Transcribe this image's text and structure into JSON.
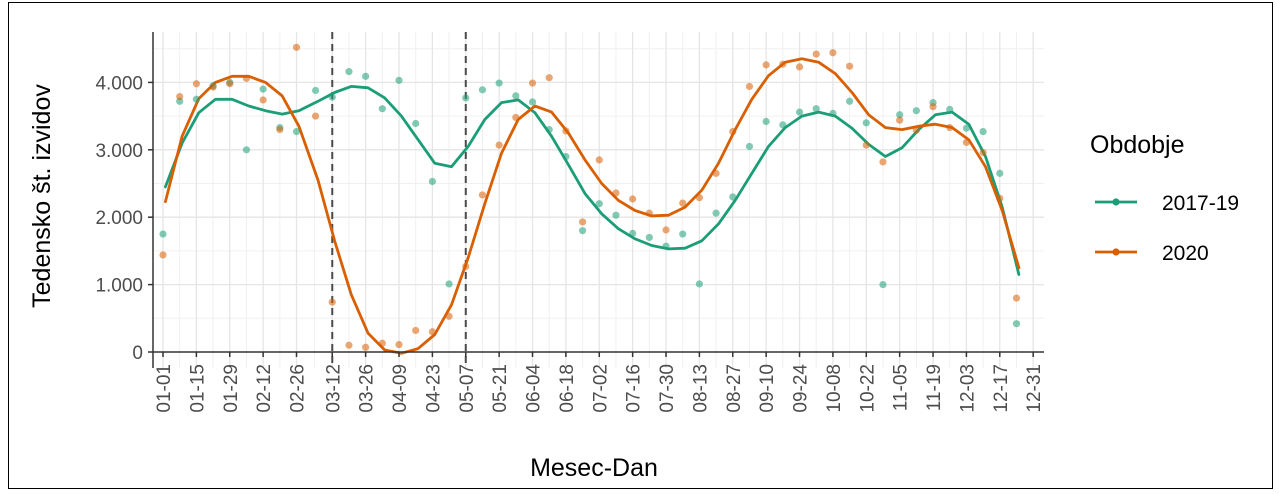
{
  "chart_data": {
    "type": "line",
    "xlabel": "Mesec-Dan",
    "ylabel": "Tedensko št. izvidov",
    "x_ticks": [
      "01-01",
      "01-15",
      "01-29",
      "02-12",
      "02-26",
      "03-12",
      "03-26",
      "04-09",
      "04-23",
      "05-07",
      "05-21",
      "06-04",
      "06-18",
      "07-02",
      "07-16",
      "07-30",
      "08-13",
      "08-27",
      "09-10",
      "09-24",
      "10-08",
      "10-22",
      "11-05",
      "11-19",
      "12-03",
      "12-17",
      "12-31"
    ],
    "y_ticks": [
      0,
      1000,
      2000,
      3000,
      4000
    ],
    "y_tick_labels": [
      "0",
      "1.000",
      "2.000",
      "3.000",
      "4.000"
    ],
    "ylim": [
      -50,
      4750
    ],
    "xlim_days": [
      0,
      365
    ],
    "grid": true,
    "reference_lines": [
      "03-12",
      "05-07"
    ],
    "legend": {
      "title": "Obdobje",
      "position": "right"
    },
    "series": [
      {
        "name": "2017-19",
        "color": "#1b9e77",
        "points": [
          {
            "x": "01-01",
            "y": 1750
          },
          {
            "x": "01-08",
            "y": 3720
          },
          {
            "x": "01-15",
            "y": 3750
          },
          {
            "x": "01-22",
            "y": 3950
          },
          {
            "x": "01-29",
            "y": 4000
          },
          {
            "x": "02-05",
            "y": 3000
          },
          {
            "x": "02-12",
            "y": 3900
          },
          {
            "x": "02-19",
            "y": 3330
          },
          {
            "x": "02-26",
            "y": 3270
          },
          {
            "x": "03-05",
            "y": 3880
          },
          {
            "x": "03-12",
            "y": 3780
          },
          {
            "x": "03-19",
            "y": 4160
          },
          {
            "x": "03-26",
            "y": 4090
          },
          {
            "x": "04-02",
            "y": 3610
          },
          {
            "x": "04-09",
            "y": 4030
          },
          {
            "x": "04-16",
            "y": 3390
          },
          {
            "x": "04-23",
            "y": 2530
          },
          {
            "x": "04-30",
            "y": 1010
          },
          {
            "x": "05-07",
            "y": 3770
          },
          {
            "x": "05-14",
            "y": 3890
          },
          {
            "x": "05-21",
            "y": 3990
          },
          {
            "x": "05-28",
            "y": 3800
          },
          {
            "x": "06-04",
            "y": 3710
          },
          {
            "x": "06-11",
            "y": 3300
          },
          {
            "x": "06-18",
            "y": 2900
          },
          {
            "x": "06-25",
            "y": 1800
          },
          {
            "x": "07-02",
            "y": 2200
          },
          {
            "x": "07-09",
            "y": 2030
          },
          {
            "x": "07-16",
            "y": 1760
          },
          {
            "x": "07-23",
            "y": 1700
          },
          {
            "x": "07-30",
            "y": 1570
          },
          {
            "x": "08-06",
            "y": 1750
          },
          {
            "x": "08-13",
            "y": 1010
          },
          {
            "x": "08-20",
            "y": 2060
          },
          {
            "x": "08-27",
            "y": 2300
          },
          {
            "x": "09-03",
            "y": 3050
          },
          {
            "x": "09-10",
            "y": 3420
          },
          {
            "x": "09-17",
            "y": 3370
          },
          {
            "x": "09-24",
            "y": 3560
          },
          {
            "x": "10-01",
            "y": 3610
          },
          {
            "x": "10-08",
            "y": 3540
          },
          {
            "x": "10-15",
            "y": 3720
          },
          {
            "x": "10-22",
            "y": 3400
          },
          {
            "x": "10-29",
            "y": 1000
          },
          {
            "x": "11-05",
            "y": 3520
          },
          {
            "x": "11-12",
            "y": 3580
          },
          {
            "x": "11-19",
            "y": 3700
          },
          {
            "x": "11-26",
            "y": 3600
          },
          {
            "x": "12-03",
            "y": 3320
          },
          {
            "x": "12-10",
            "y": 3270
          },
          {
            "x": "12-17",
            "y": 2650
          },
          {
            "x": "12-24",
            "y": 420
          }
        ],
        "smooth": [
          {
            "x": "01-02",
            "y": 2450
          },
          {
            "x": "01-09",
            "y": 3100
          },
          {
            "x": "01-16",
            "y": 3550
          },
          {
            "x": "01-23",
            "y": 3750
          },
          {
            "x": "01-30",
            "y": 3750
          },
          {
            "x": "02-06",
            "y": 3650
          },
          {
            "x": "02-13",
            "y": 3580
          },
          {
            "x": "02-20",
            "y": 3530
          },
          {
            "x": "02-27",
            "y": 3580
          },
          {
            "x": "03-06",
            "y": 3720
          },
          {
            "x": "03-13",
            "y": 3850
          },
          {
            "x": "03-20",
            "y": 3940
          },
          {
            "x": "03-27",
            "y": 3920
          },
          {
            "x": "04-03",
            "y": 3770
          },
          {
            "x": "04-10",
            "y": 3500
          },
          {
            "x": "04-17",
            "y": 3150
          },
          {
            "x": "04-24",
            "y": 2800
          },
          {
            "x": "05-01",
            "y": 2750
          },
          {
            "x": "05-08",
            "y": 3050
          },
          {
            "x": "05-15",
            "y": 3450
          },
          {
            "x": "05-22",
            "y": 3700
          },
          {
            "x": "05-29",
            "y": 3740
          },
          {
            "x": "06-05",
            "y": 3550
          },
          {
            "x": "06-12",
            "y": 3200
          },
          {
            "x": "06-19",
            "y": 2780
          },
          {
            "x": "06-26",
            "y": 2350
          },
          {
            "x": "07-03",
            "y": 2050
          },
          {
            "x": "07-10",
            "y": 1830
          },
          {
            "x": "07-17",
            "y": 1680
          },
          {
            "x": "07-24",
            "y": 1580
          },
          {
            "x": "07-31",
            "y": 1530
          },
          {
            "x": "08-07",
            "y": 1540
          },
          {
            "x": "08-14",
            "y": 1650
          },
          {
            "x": "08-21",
            "y": 1900
          },
          {
            "x": "08-28",
            "y": 2250
          },
          {
            "x": "09-04",
            "y": 2650
          },
          {
            "x": "09-11",
            "y": 3050
          },
          {
            "x": "09-18",
            "y": 3330
          },
          {
            "x": "09-25",
            "y": 3500
          },
          {
            "x": "10-02",
            "y": 3560
          },
          {
            "x": "10-09",
            "y": 3500
          },
          {
            "x": "10-16",
            "y": 3320
          },
          {
            "x": "10-23",
            "y": 3080
          },
          {
            "x": "10-30",
            "y": 2900
          },
          {
            "x": "11-06",
            "y": 3030
          },
          {
            "x": "11-13",
            "y": 3300
          },
          {
            "x": "11-20",
            "y": 3520
          },
          {
            "x": "11-27",
            "y": 3560
          },
          {
            "x": "12-04",
            "y": 3380
          },
          {
            "x": "12-11",
            "y": 2900
          },
          {
            "x": "12-18",
            "y": 2150
          },
          {
            "x": "12-25",
            "y": 1150
          }
        ]
      },
      {
        "name": "2020",
        "color": "#d95f02",
        "points": [
          {
            "x": "01-01",
            "y": 1440
          },
          {
            "x": "01-08",
            "y": 3790
          },
          {
            "x": "01-15",
            "y": 3980
          },
          {
            "x": "01-22",
            "y": 3930
          },
          {
            "x": "01-29",
            "y": 3980
          },
          {
            "x": "02-05",
            "y": 4060
          },
          {
            "x": "02-12",
            "y": 3740
          },
          {
            "x": "02-19",
            "y": 3300
          },
          {
            "x": "02-26",
            "y": 4520
          },
          {
            "x": "03-05",
            "y": 3500
          },
          {
            "x": "03-12",
            "y": 740
          },
          {
            "x": "03-19",
            "y": 100
          },
          {
            "x": "03-26",
            "y": 70
          },
          {
            "x": "04-02",
            "y": 130
          },
          {
            "x": "04-09",
            "y": 110
          },
          {
            "x": "04-16",
            "y": 320
          },
          {
            "x": "04-23",
            "y": 300
          },
          {
            "x": "04-30",
            "y": 530
          },
          {
            "x": "05-07",
            "y": 1270
          },
          {
            "x": "05-14",
            "y": 2330
          },
          {
            "x": "05-21",
            "y": 3070
          },
          {
            "x": "05-28",
            "y": 3480
          },
          {
            "x": "06-04",
            "y": 3990
          },
          {
            "x": "06-11",
            "y": 4070
          },
          {
            "x": "06-18",
            "y": 3280
          },
          {
            "x": "06-25",
            "y": 1930
          },
          {
            "x": "07-02",
            "y": 2850
          },
          {
            "x": "07-09",
            "y": 2360
          },
          {
            "x": "07-16",
            "y": 2270
          },
          {
            "x": "07-23",
            "y": 2060
          },
          {
            "x": "07-30",
            "y": 1810
          },
          {
            "x": "08-06",
            "y": 2210
          },
          {
            "x": "08-13",
            "y": 2290
          },
          {
            "x": "08-20",
            "y": 2650
          },
          {
            "x": "08-27",
            "y": 3270
          },
          {
            "x": "09-03",
            "y": 3940
          },
          {
            "x": "09-10",
            "y": 4260
          },
          {
            "x": "09-17",
            "y": 4270
          },
          {
            "x": "09-24",
            "y": 4230
          },
          {
            "x": "10-01",
            "y": 4420
          },
          {
            "x": "10-08",
            "y": 4440
          },
          {
            "x": "10-15",
            "y": 4240
          },
          {
            "x": "10-22",
            "y": 3070
          },
          {
            "x": "10-29",
            "y": 2820
          },
          {
            "x": "11-05",
            "y": 3440
          },
          {
            "x": "11-12",
            "y": 3290
          },
          {
            "x": "11-19",
            "y": 3640
          },
          {
            "x": "11-26",
            "y": 3330
          },
          {
            "x": "12-03",
            "y": 3110
          },
          {
            "x": "12-10",
            "y": 2960
          },
          {
            "x": "12-17",
            "y": 2280
          },
          {
            "x": "12-24",
            "y": 800
          }
        ],
        "smooth": [
          {
            "x": "01-02",
            "y": 2230
          },
          {
            "x": "01-09",
            "y": 3200
          },
          {
            "x": "01-16",
            "y": 3760
          },
          {
            "x": "01-23",
            "y": 4000
          },
          {
            "x": "01-30",
            "y": 4090
          },
          {
            "x": "02-06",
            "y": 4090
          },
          {
            "x": "02-13",
            "y": 4000
          },
          {
            "x": "02-20",
            "y": 3800
          },
          {
            "x": "02-27",
            "y": 3350
          },
          {
            "x": "03-06",
            "y": 2550
          },
          {
            "x": "03-13",
            "y": 1650
          },
          {
            "x": "03-20",
            "y": 850
          },
          {
            "x": "03-27",
            "y": 280
          },
          {
            "x": "04-03",
            "y": 30
          },
          {
            "x": "04-10",
            "y": -20
          },
          {
            "x": "04-17",
            "y": 50
          },
          {
            "x": "04-24",
            "y": 260
          },
          {
            "x": "05-01",
            "y": 700
          },
          {
            "x": "05-08",
            "y": 1400
          },
          {
            "x": "05-15",
            "y": 2200
          },
          {
            "x": "05-22",
            "y": 2950
          },
          {
            "x": "05-29",
            "y": 3450
          },
          {
            "x": "06-05",
            "y": 3650
          },
          {
            "x": "06-12",
            "y": 3560
          },
          {
            "x": "06-19",
            "y": 3250
          },
          {
            "x": "06-26",
            "y": 2850
          },
          {
            "x": "07-03",
            "y": 2500
          },
          {
            "x": "07-10",
            "y": 2250
          },
          {
            "x": "07-17",
            "y": 2100
          },
          {
            "x": "07-24",
            "y": 2020
          },
          {
            "x": "07-31",
            "y": 2030
          },
          {
            "x": "08-07",
            "y": 2150
          },
          {
            "x": "08-14",
            "y": 2400
          },
          {
            "x": "08-21",
            "y": 2800
          },
          {
            "x": "08-28",
            "y": 3300
          },
          {
            "x": "09-04",
            "y": 3750
          },
          {
            "x": "09-11",
            "y": 4100
          },
          {
            "x": "09-18",
            "y": 4300
          },
          {
            "x": "09-25",
            "y": 4350
          },
          {
            "x": "10-02",
            "y": 4300
          },
          {
            "x": "10-09",
            "y": 4130
          },
          {
            "x": "10-16",
            "y": 3850
          },
          {
            "x": "10-23",
            "y": 3520
          },
          {
            "x": "10-30",
            "y": 3330
          },
          {
            "x": "11-06",
            "y": 3300
          },
          {
            "x": "11-13",
            "y": 3350
          },
          {
            "x": "11-20",
            "y": 3380
          },
          {
            "x": "11-27",
            "y": 3330
          },
          {
            "x": "12-04",
            "y": 3150
          },
          {
            "x": "12-11",
            "y": 2750
          },
          {
            "x": "12-18",
            "y": 2100
          },
          {
            "x": "12-25",
            "y": 1250
          }
        ]
      }
    ]
  }
}
